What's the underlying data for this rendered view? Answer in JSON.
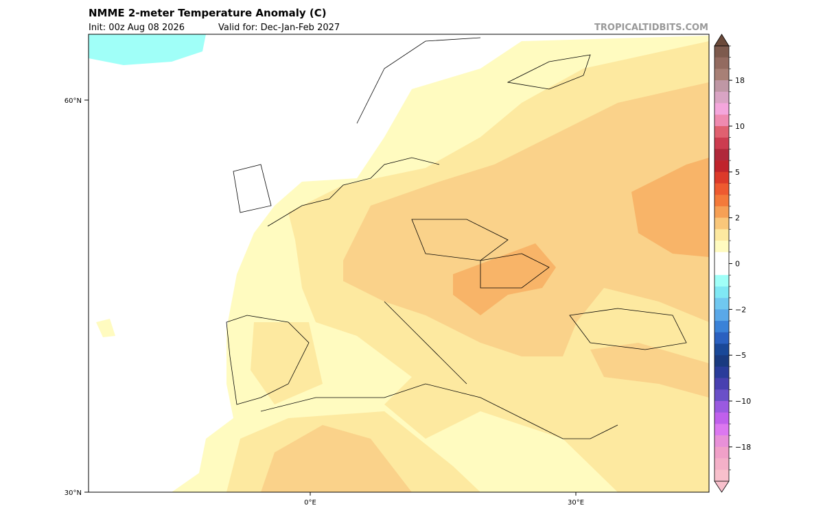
{
  "header": {
    "title": "NMME 2-meter Temperature Anomaly (C)",
    "init": "Init: 00z Aug 08 2026",
    "valid": "Valid for: Dec-Jan-Feb 2027",
    "watermark": "TROPICALTIDBITS.COM"
  },
  "map": {
    "lat_labels": [
      "60°N",
      "30°N"
    ],
    "lon_labels": [
      "0°E",
      "30°E"
    ]
  },
  "colorbar": {
    "labels": [
      "18",
      "10",
      "5",
      "2",
      "0",
      "−2",
      "−5",
      "−10",
      "−18"
    ],
    "over_color": "#6b4a3a",
    "under_color": "#f8c0cc",
    "colors": [
      "#7d5a4d",
      "#936b60",
      "#a88076",
      "#bf97a5",
      "#d9a4c4",
      "#f4a6dc",
      "#ef8ab0",
      "#e06070",
      "#cc3c50",
      "#b0283a",
      "#c0242c",
      "#dc3a2a",
      "#ee5a30",
      "#f47a3a",
      "#f6a055",
      "#f9c77a",
      "#fde9a0",
      "#fffbc0",
      "#ffffff",
      "#ffffff",
      "#a0fff8",
      "#80e8f4",
      "#70c8f0",
      "#5aa8e8",
      "#3a82d8",
      "#2a60c0",
      "#1a4898",
      "#1a3a80",
      "#2a3c9a",
      "#4840b0",
      "#6a50c8",
      "#9a5ae0",
      "#c060ec",
      "#dc78f0",
      "#e890d8",
      "#f0a0c8",
      "#f4b0c8",
      "#f8c0cc"
    ]
  }
}
